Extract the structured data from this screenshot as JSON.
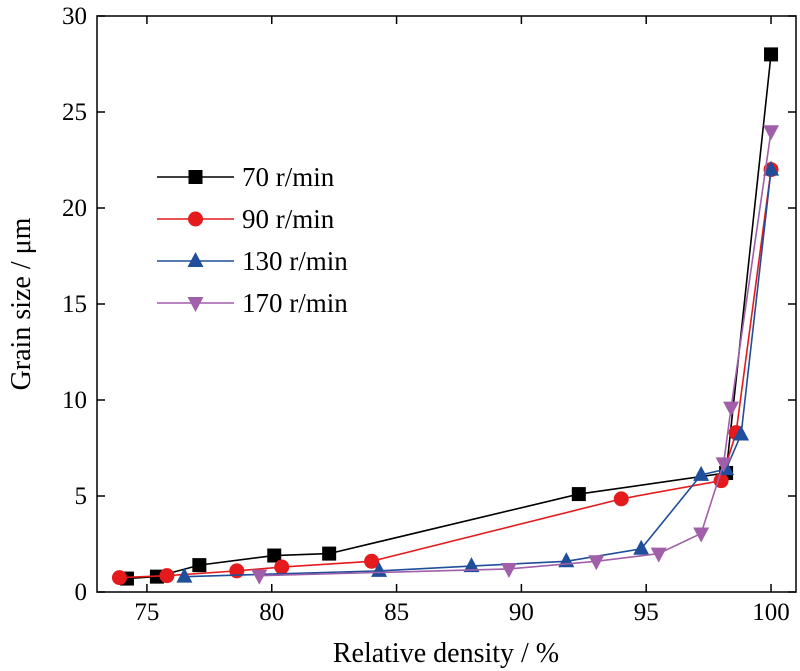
{
  "chart_data": {
    "type": "line",
    "xlabel": "Relative density / %",
    "ylabel": "Grain size / μm",
    "xlim": [
      73,
      101
    ],
    "ylim": [
      0,
      30
    ],
    "xticks": [
      "75",
      "80",
      "85",
      "90",
      "95",
      "100"
    ],
    "yticks": [
      "0",
      "5",
      "10",
      "15",
      "20",
      "25",
      "30"
    ],
    "grid": false,
    "legend_position": "upper-left",
    "series": [
      {
        "name": "70  r/min",
        "color": "#000000",
        "marker": "square",
        "x": [
          74.2,
          75.4,
          77.1,
          80.1,
          82.3,
          92.3,
          98.2,
          100.0
        ],
        "y": [
          0.7,
          0.8,
          1.4,
          1.9,
          2.0,
          5.1,
          6.2,
          28.0
        ]
      },
      {
        "name": "90  r/min",
        "color": "#e41a1c",
        "marker": "circle",
        "x": [
          73.9,
          75.8,
          78.6,
          80.4,
          84.0,
          94.0,
          98.0,
          98.6,
          100.0
        ],
        "y": [
          0.75,
          0.85,
          1.1,
          1.3,
          1.6,
          4.85,
          5.8,
          8.3,
          22.0
        ]
      },
      {
        "name": "130  r/min",
        "color": "#1f4e9a",
        "marker": "triangle-up",
        "x": [
          76.5,
          84.3,
          88.0,
          91.8,
          94.8,
          97.2,
          98.2,
          98.8,
          100.0
        ],
        "y": [
          0.8,
          1.1,
          1.35,
          1.6,
          2.25,
          6.1,
          6.4,
          8.2,
          22.0
        ]
      },
      {
        "name": "170  r/min",
        "color": "#a05fa8",
        "marker": "triangle-down",
        "x": [
          79.5,
          89.5,
          93.0,
          95.5,
          97.2,
          98.1,
          98.4,
          100.0
        ],
        "y": [
          0.85,
          1.2,
          1.6,
          2.0,
          3.05,
          6.7,
          9.6,
          24.0
        ]
      }
    ]
  }
}
